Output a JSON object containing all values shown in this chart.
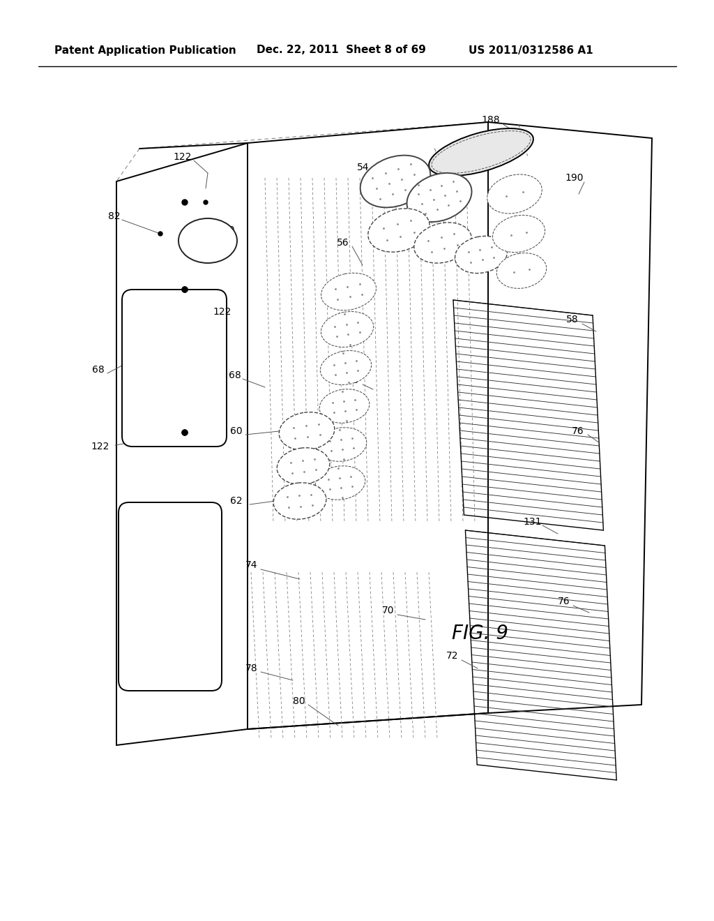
{
  "header_left": "Patent Application Publication",
  "header_mid": "Dec. 22, 2011  Sheet 8 of 69",
  "header_right": "US 2011/0312586 A1",
  "figure_label": "FIG. 9",
  "bg_color": "#ffffff",
  "line_color": "#000000",
  "header_fontsize": 11,
  "label_fontsize": 10,
  "fig_label_fontsize": 18,
  "lw_main": 1.4,
  "lw_med": 1.0,
  "lw_thin": 0.7,
  "lw_dash": 0.65
}
